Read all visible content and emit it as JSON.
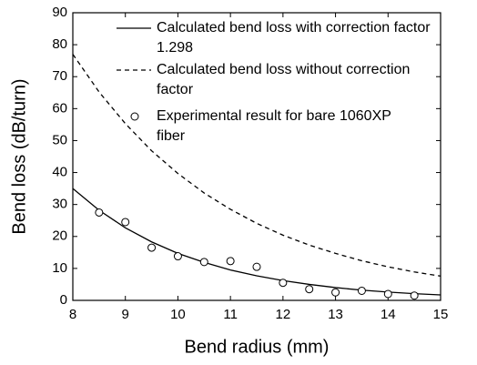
{
  "chart_data": {
    "type": "line",
    "xlabel": "Bend radius (mm)",
    "ylabel": "Bend loss (dB/turn)",
    "xlim": [
      8,
      15
    ],
    "xticks": [
      8,
      9,
      10,
      11,
      12,
      13,
      14,
      15
    ],
    "ylim": [
      0,
      90
    ],
    "yticks": [
      0,
      10,
      20,
      30,
      40,
      50,
      60,
      70,
      80,
      90
    ],
    "series": [
      {
        "name": "Calculated bend loss with correction factor 1.298",
        "type": "line",
        "dash": "solid",
        "color": "#000000",
        "x": [
          8,
          8.5,
          9,
          9.5,
          10,
          10.5,
          11,
          11.5,
          12,
          12.5,
          13,
          13.5,
          14,
          14.5,
          15
        ],
        "values": [
          35,
          28.2,
          22.7,
          18.3,
          14.7,
          11.9,
          9.5,
          7.7,
          6.2,
          5.0,
          4.0,
          3.2,
          2.6,
          2.1,
          1.7
        ]
      },
      {
        "name": "Calculated bend loss without correction factor",
        "type": "line",
        "dash": "dashed",
        "color": "#000000",
        "x": [
          8,
          8.5,
          9,
          9.5,
          10,
          10.5,
          11,
          11.5,
          12,
          12.5,
          13,
          13.5,
          14,
          14.5,
          15
        ],
        "values": [
          77,
          65.2,
          55.3,
          46.8,
          39.7,
          33.6,
          28.5,
          24.1,
          20.4,
          17.3,
          14.7,
          12.4,
          10.5,
          8.9,
          7.6
        ]
      },
      {
        "name": "Experimental result for bare 1060XP fiber",
        "type": "scatter",
        "color": "#000000",
        "x": [
          8.5,
          9,
          9.5,
          10,
          10.5,
          11,
          11.5,
          12,
          12.5,
          13,
          13.5,
          14,
          14.5
        ],
        "values": [
          27.5,
          24.5,
          16.5,
          13.8,
          12,
          12.3,
          10.5,
          5.5,
          3.5,
          2.5,
          3,
          2,
          1.5
        ]
      }
    ]
  }
}
